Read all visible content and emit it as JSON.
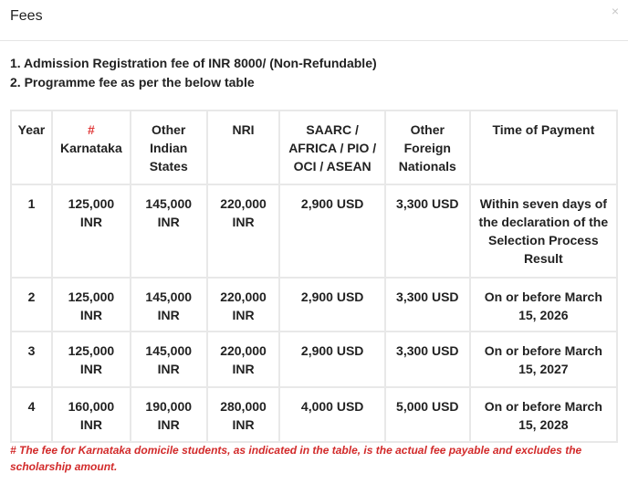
{
  "modal": {
    "title": "Fees",
    "close_symbol": "×",
    "list": [
      "1. Admission Registration fee of INR 8000/ (Non-Refundable)",
      "2. Programme fee as per the below table"
    ]
  },
  "table": {
    "headers": {
      "year": "Year",
      "karnataka_mark": "#",
      "karnataka": "Karnataka",
      "other_states": "Other Indian States",
      "nri": "NRI",
      "saarc": "SAARC / AFRICA / PIO / OCI / ASEAN",
      "foreign": "Other Foreign Nationals",
      "time": "Time of Payment"
    },
    "rows": [
      {
        "year": "1",
        "karnataka": "125,000 INR",
        "other_states": "145,000 INR",
        "nri": "220,000 INR",
        "saarc": "2,900 USD",
        "foreign": "3,300 USD",
        "time": "Within seven days of the declaration of the Selection Process Result"
      },
      {
        "year": "2",
        "karnataka": "125,000 INR",
        "other_states": "145,000 INR",
        "nri": "220,000 INR",
        "saarc": "2,900 USD",
        "foreign": "3,300 USD",
        "time": "On or before March 15, 2026"
      },
      {
        "year": "3",
        "karnataka": "125,000 INR",
        "other_states": "145,000 INR",
        "nri": "220,000 INR",
        "saarc": "2,900 USD",
        "foreign": "3,300 USD",
        "time": "On or before March 15, 2027"
      },
      {
        "year": "4",
        "karnataka": "160,000 INR",
        "other_states": "190,000 INR",
        "nri": "280,000 INR",
        "saarc": "4,000 USD",
        "foreign": "5,000 USD",
        "time": "On or before March 15, 2028"
      }
    ]
  },
  "note": "# The fee for Karnataka domicile students, as indicated in the table, is the actual fee payable and excludes the scholarship amount.",
  "colors": {
    "note": "#d22a2a",
    "hash": "#e03a3a",
    "border": "#e8e8e8"
  }
}
